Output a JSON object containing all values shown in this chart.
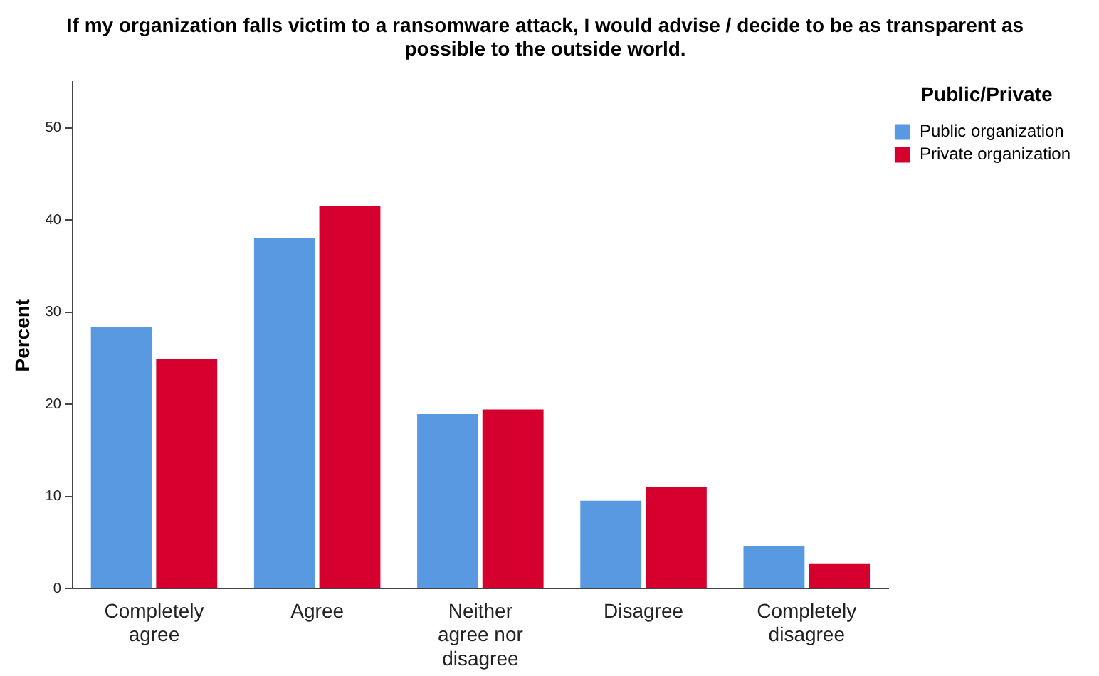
{
  "chart_data": {
    "type": "bar",
    "title": "If my organization falls victim to a ransomware attack, I would advise / decide to be as transparent as possible to the outside world.",
    "ylabel": "Percent",
    "legend_title": "Public/Private",
    "categories": [
      "Completely agree",
      "Agree",
      "Neither agree nor disagree",
      "Disagree",
      "Completely disagree"
    ],
    "series": [
      {
        "name": "Public organization",
        "color": "#5899e2",
        "values": [
          28.6,
          38.2,
          19.1,
          9.7,
          4.8
        ]
      },
      {
        "name": "Private organization",
        "color": "#d6002f",
        "values": [
          25.1,
          41.7,
          19.6,
          11.2,
          2.9
        ]
      }
    ],
    "ylim": [
      0,
      55
    ],
    "yticks": [
      0,
      10,
      20,
      30,
      40,
      50
    ],
    "grid": false,
    "legend": "top right"
  }
}
